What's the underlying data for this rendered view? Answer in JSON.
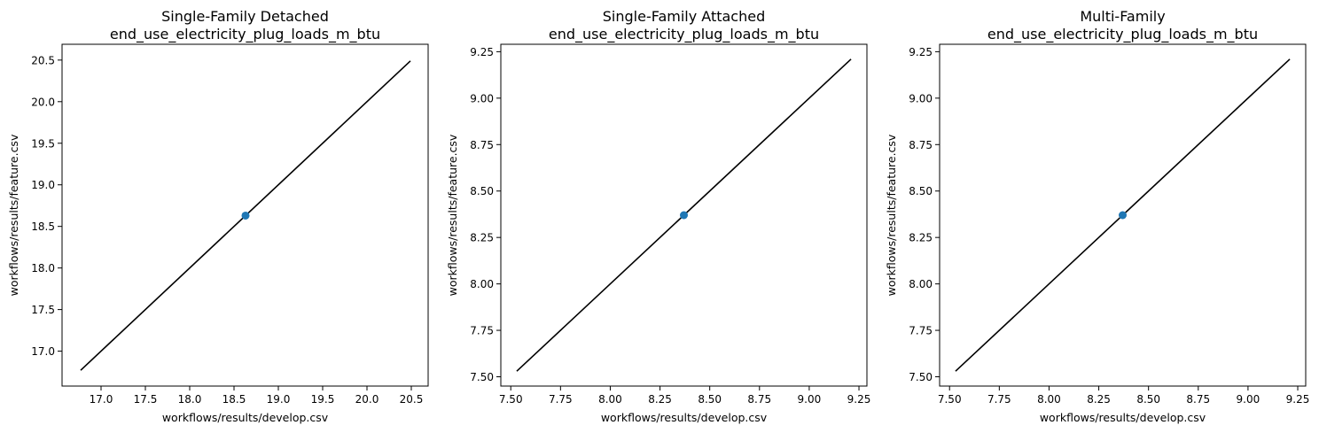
{
  "chart_data": [
    {
      "type": "scatter",
      "title": "Single-Family Detached\nend_use_electricity_plug_loads_m_btu",
      "xlabel": "workflows/results/develop.csv",
      "ylabel": "workflows/results/feature.csv",
      "xlim": [
        16.56,
        20.69
      ],
      "ylim": [
        16.58,
        20.69
      ],
      "xticks": [
        17.0,
        17.5,
        18.0,
        18.5,
        19.0,
        19.5,
        20.0,
        20.5
      ],
      "yticks": [
        17.0,
        17.5,
        18.0,
        18.5,
        19.0,
        19.5,
        20.0,
        20.5
      ],
      "tick_decimals": 1,
      "points": [
        {
          "x": 18.63,
          "y": 18.63
        }
      ],
      "reference_line": [
        [
          16.77,
          16.77
        ],
        [
          20.49,
          20.49
        ]
      ],
      "grid": false
    },
    {
      "type": "scatter",
      "title": "Single-Family Attached\nend_use_electricity_plug_loads_m_btu",
      "xlabel": "workflows/results/develop.csv",
      "ylabel": "workflows/results/feature.csv",
      "xlim": [
        7.45,
        9.29
      ],
      "ylim": [
        7.45,
        9.29
      ],
      "xticks": [
        7.5,
        7.75,
        8.0,
        8.25,
        8.5,
        8.75,
        9.0,
        9.25
      ],
      "yticks": [
        7.5,
        7.75,
        8.0,
        8.25,
        8.5,
        8.75,
        9.0,
        9.25
      ],
      "tick_decimals": 2,
      "points": [
        {
          "x": 8.37,
          "y": 8.37
        }
      ],
      "reference_line": [
        [
          7.53,
          7.53
        ],
        [
          9.21,
          9.21
        ]
      ],
      "grid": false
    },
    {
      "type": "scatter",
      "title": "Multi-Family\nend_use_electricity_plug_loads_m_btu",
      "xlabel": "workflows/results/develop.csv",
      "ylabel": "workflows/results/feature.csv",
      "xlim": [
        7.45,
        9.29
      ],
      "ylim": [
        7.45,
        9.29
      ],
      "xticks": [
        7.5,
        7.75,
        8.0,
        8.25,
        8.5,
        8.75,
        9.0,
        9.25
      ],
      "yticks": [
        7.5,
        7.75,
        8.0,
        8.25,
        8.5,
        8.75,
        9.0,
        9.25
      ],
      "tick_decimals": 2,
      "points": [
        {
          "x": 8.37,
          "y": 8.37
        }
      ],
      "reference_line": [
        [
          7.53,
          7.53
        ],
        [
          9.21,
          9.21
        ]
      ],
      "grid": false
    }
  ],
  "colors": {
    "point": "#1f77b4",
    "line": "#000000",
    "axes": "#000000"
  }
}
